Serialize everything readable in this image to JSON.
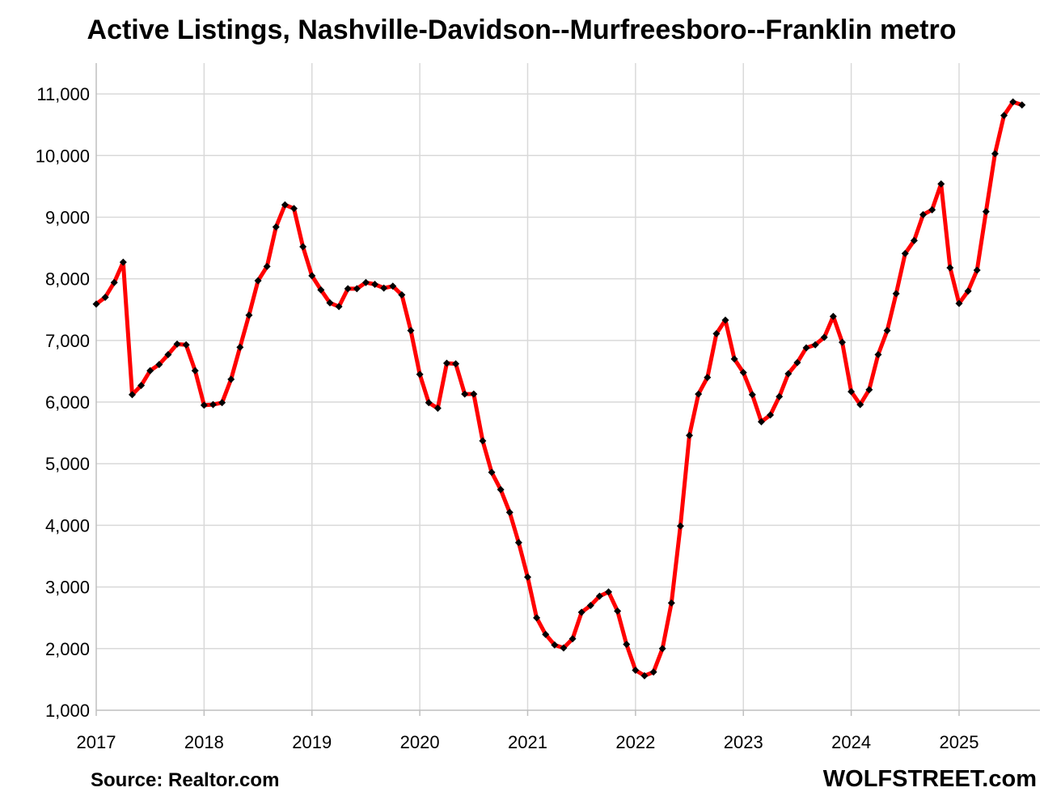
{
  "chart_data": {
    "type": "line",
    "title": "Active Listings, Nashville-Davidson--Murfreesboro--Franklin metro",
    "source": "Source: Realtor.com",
    "watermark": "WOLFSTREET.com",
    "xlabel": "",
    "ylabel": "",
    "x_start": "2017-01",
    "x_end": "2025-08",
    "xlim": [
      2017.0,
      2025.75
    ],
    "x_tick_labels": [
      "2017",
      "2018",
      "2019",
      "2020",
      "2021",
      "2022",
      "2023",
      "2024",
      "2025"
    ],
    "ylim": [
      1000,
      11500
    ],
    "y_tick_labels": [
      "1,000",
      "2,000",
      "3,000",
      "4,000",
      "5,000",
      "6,000",
      "7,000",
      "8,000",
      "9,000",
      "10,000",
      "11,000"
    ],
    "grid": true,
    "legend": "none",
    "line_color": "#ff0000",
    "marker_color": "#000000",
    "series": [
      {
        "values": [
          7590,
          7700,
          7940,
          8270,
          6120,
          6270,
          6510,
          6610,
          6770,
          6940,
          6930,
          6510,
          5950,
          5960,
          5990,
          6370,
          6890,
          7410,
          7970,
          8200,
          8840,
          9200,
          9140,
          8520,
          8050,
          7820,
          7610,
          7550,
          7840,
          7840,
          7940,
          7910,
          7850,
          7880,
          7740,
          7160,
          6450,
          5990,
          5900,
          6630,
          6620,
          6130,
          6130,
          5370,
          4860,
          4580,
          4210,
          3720,
          3160,
          2500,
          2230,
          2060,
          2010,
          2160,
          2590,
          2700,
          2850,
          2920,
          2610,
          2070,
          1650,
          1560,
          1620,
          2000,
          2740,
          3990,
          5460,
          6130,
          6400,
          7110,
          7330,
          6700,
          6480,
          6120,
          5680,
          5790,
          6090,
          6460,
          6640,
          6880,
          6930,
          7050,
          7390,
          6970,
          6170,
          5960,
          6200,
          6770,
          7160,
          7760,
          8410,
          8620,
          9040,
          9120,
          9540,
          8180,
          7600,
          7800,
          8140,
          9090,
          10030,
          10650,
          10870,
          10820
        ]
      }
    ]
  }
}
